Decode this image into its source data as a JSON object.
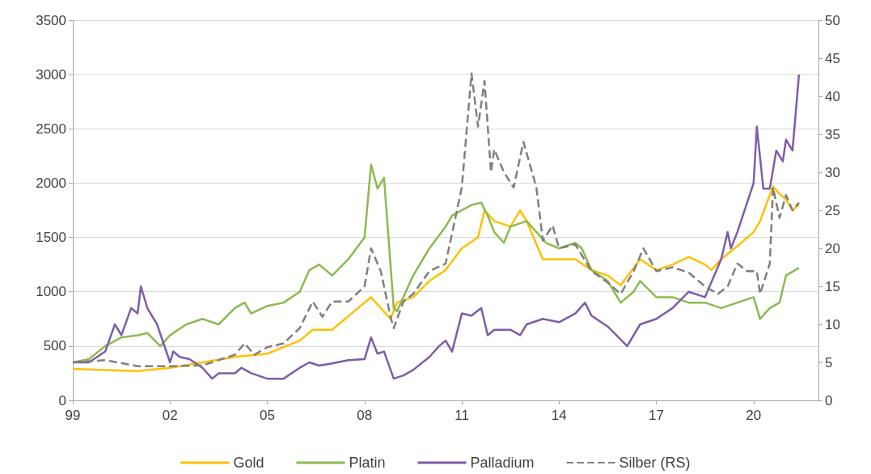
{
  "chart_data": {
    "type": "line",
    "xlim": [
      1999,
      2022
    ],
    "xticks": [
      {
        "value": 1999,
        "label": "99"
      },
      {
        "value": 2002,
        "label": "02"
      },
      {
        "value": 2005,
        "label": "05"
      },
      {
        "value": 2008,
        "label": "08"
      },
      {
        "value": 2011,
        "label": "11"
      },
      {
        "value": 2014,
        "label": "14"
      },
      {
        "value": 2017,
        "label": "17"
      },
      {
        "value": 2020,
        "label": "20"
      }
    ],
    "ylim": [
      0,
      3500
    ],
    "yticks": [
      0,
      500,
      1000,
      1500,
      2000,
      2500,
      3000,
      3500
    ],
    "y2lim": [
      0,
      50
    ],
    "y2ticks": [
      0,
      5,
      10,
      15,
      20,
      25,
      30,
      35,
      40,
      45,
      50
    ],
    "grid": "y",
    "legend": "bottom",
    "marker": "none",
    "series": [
      {
        "name": "Gold",
        "color": "#ffc000",
        "x": [
          1999,
          2000,
          2001,
          2002,
          2003,
          2004,
          2005,
          2006,
          2006.4,
          2007,
          2008,
          2008.2,
          2008.8,
          2009,
          2009.5,
          2010,
          2010.5,
          2011,
          2011.5,
          2011.7,
          2012,
          2012.5,
          2012.8,
          2013,
          2013.5,
          2014,
          2014.5,
          2015,
          2015.5,
          2015.9,
          2016.5,
          2017,
          2017.5,
          2018,
          2018.5,
          2018.7,
          2019,
          2019.5,
          2020,
          2020.2,
          2020.6,
          2020.8,
          2021,
          2021.2,
          2021.4
        ],
        "values": [
          290,
          280,
          270,
          300,
          350,
          400,
          430,
          550,
          650,
          650,
          900,
          950,
          750,
          900,
          950,
          1100,
          1200,
          1400,
          1500,
          1750,
          1650,
          1600,
          1750,
          1650,
          1300,
          1300,
          1300,
          1200,
          1150,
          1060,
          1300,
          1200,
          1250,
          1320,
          1250,
          1200,
          1300,
          1420,
          1550,
          1650,
          1970,
          1900,
          1850,
          1750,
          1800
        ]
      },
      {
        "name": "Platin",
        "color": "#8db94f",
        "x": [
          1999,
          1999.5,
          2000,
          2000.5,
          2001,
          2001.3,
          2001.7,
          2002,
          2002.5,
          2003,
          2003.5,
          2004,
          2004.3,
          2004.5,
          2005,
          2005.5,
          2006,
          2006.3,
          2006.6,
          2007,
          2007.5,
          2008,
          2008.2,
          2008.4,
          2008.6,
          2008.9,
          2009,
          2009.5,
          2010,
          2010.5,
          2010.7,
          2011,
          2011.3,
          2011.6,
          2011.8,
          2012,
          2012.3,
          2012.5,
          2013,
          2013.3,
          2013.6,
          2014,
          2014.5,
          2014.7,
          2015,
          2015.5,
          2015.9,
          2016.3,
          2016.5,
          2017,
          2017.5,
          2018,
          2018.5,
          2019,
          2019.5,
          2020,
          2020.2,
          2020.5,
          2020.8,
          2021,
          2021.4
        ],
        "values": [
          350,
          380,
          500,
          580,
          600,
          620,
          500,
          600,
          700,
          750,
          700,
          850,
          900,
          800,
          870,
          900,
          1000,
          1200,
          1250,
          1150,
          1300,
          1500,
          2170,
          1950,
          2050,
          850,
          820,
          1150,
          1400,
          1600,
          1700,
          1750,
          1800,
          1820,
          1700,
          1550,
          1450,
          1600,
          1650,
          1550,
          1450,
          1400,
          1450,
          1400,
          1200,
          1100,
          900,
          1000,
          1100,
          950,
          950,
          900,
          900,
          850,
          900,
          950,
          750,
          850,
          900,
          1150,
          1220
        ]
      },
      {
        "name": "Palladium",
        "color": "#7f5ca8",
        "x": [
          1999,
          1999.5,
          2000,
          2000.3,
          2000.5,
          2000.8,
          2001,
          2001.1,
          2001.3,
          2001.6,
          2002,
          2002.1,
          2002.3,
          2002.6,
          2003,
          2003.3,
          2003.5,
          2004,
          2004.2,
          2004.5,
          2005,
          2005.5,
          2006,
          2006.3,
          2006.6,
          2007,
          2007.5,
          2008,
          2008.2,
          2008.4,
          2008.6,
          2008.9,
          2009.2,
          2009.5,
          2010,
          2010.3,
          2010.5,
          2010.7,
          2011,
          2011.3,
          2011.6,
          2011.8,
          2012,
          2012.5,
          2012.8,
          2013,
          2013.5,
          2014,
          2014.5,
          2014.8,
          2015,
          2015.5,
          2016.1,
          2016.5,
          2017,
          2017.5,
          2018,
          2018.5,
          2019,
          2019.2,
          2019.3,
          2019.5,
          2020,
          2020.1,
          2020.3,
          2020.5,
          2020.7,
          2020.9,
          2021,
          2021.2,
          2021.4
        ],
        "values": [
          350,
          350,
          450,
          700,
          600,
          850,
          800,
          1050,
          850,
          700,
          350,
          450,
          400,
          380,
          300,
          200,
          250,
          250,
          300,
          250,
          200,
          200,
          300,
          350,
          320,
          340,
          370,
          380,
          580,
          430,
          450,
          200,
          230,
          280,
          400,
          500,
          550,
          450,
          800,
          780,
          850,
          600,
          650,
          650,
          600,
          700,
          750,
          720,
          800,
          900,
          780,
          680,
          500,
          700,
          750,
          850,
          1000,
          950,
          1300,
          1550,
          1400,
          1550,
          2000,
          2520,
          1950,
          1950,
          2300,
          2200,
          2400,
          2300,
          3000
        ]
      },
      {
        "name": "Silber (RS)",
        "color": "#7f7f7f",
        "axis": "y2",
        "line_style": "dashed",
        "x": [
          1999,
          2000,
          2001,
          2002,
          2003,
          2004,
          2004.3,
          2004.6,
          2005,
          2005.5,
          2006,
          2006.4,
          2006.7,
          2007,
          2007.5,
          2008,
          2008.2,
          2008.5,
          2008.8,
          2008.9,
          2009.2,
          2009.5,
          2010,
          2010.5,
          2010.8,
          2011,
          2011.3,
          2011.5,
          2011.7,
          2011.9,
          2012,
          2012.3,
          2012.6,
          2012.9,
          2013.1,
          2013.3,
          2013.5,
          2013.8,
          2014,
          2014.5,
          2015,
          2015.5,
          2015.9,
          2016.3,
          2016.6,
          2017,
          2017.5,
          2018,
          2018.5,
          2018.9,
          2019.2,
          2019.5,
          2019.8,
          2020.1,
          2020.2,
          2020.5,
          2020.6,
          2020.8,
          2021,
          2021.2,
          2021.4
        ],
        "values": [
          5,
          5.3,
          4.5,
          4.5,
          4.6,
          6,
          7.5,
          6,
          7,
          7.5,
          9.5,
          13,
          11,
          13,
          13,
          15,
          20,
          17,
          11,
          9.5,
          13,
          14,
          17,
          18,
          24,
          28,
          43,
          36,
          42,
          30,
          33,
          30,
          28,
          34,
          31,
          28,
          21,
          23,
          20,
          20.5,
          17,
          15.5,
          14,
          17,
          20,
          17,
          17.5,
          16.8,
          15,
          14,
          15,
          18,
          17,
          17,
          14,
          18,
          28,
          24,
          27,
          25,
          26
        ]
      }
    ]
  }
}
